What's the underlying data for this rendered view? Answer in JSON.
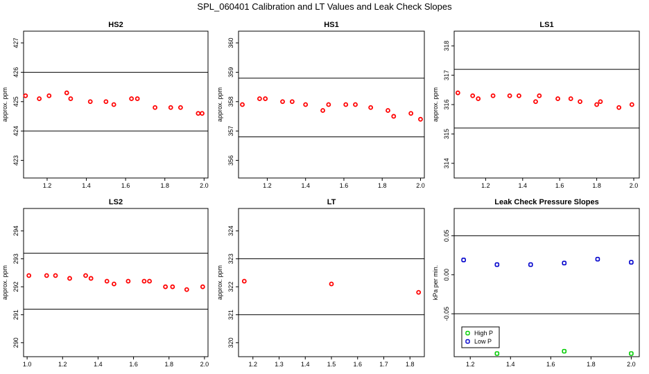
{
  "main_title": "SPL_060401  Calibration and LT Values and Leak Check Slopes",
  "chart_data": [
    {
      "type": "scatter",
      "title": "HS2",
      "ylabel": "approx. ppm",
      "xlim": [
        1.08,
        2.02
      ],
      "ylim": [
        422.4,
        427.4
      ],
      "xticks": [
        "1.2",
        "1.4",
        "1.6",
        "1.8",
        "2.0"
      ],
      "yticks": [
        "423",
        "424",
        "425",
        "426",
        "427"
      ],
      "hlines": [
        426,
        424
      ],
      "series": [
        {
          "color": "#ff0000",
          "marker": "circle",
          "x": [
            1.09,
            1.16,
            1.21,
            1.3,
            1.32,
            1.42,
            1.5,
            1.54,
            1.63,
            1.66,
            1.75,
            1.83,
            1.88,
            1.97,
            1.99
          ],
          "y": [
            425.2,
            425.1,
            425.2,
            425.3,
            425.1,
            425.0,
            425.0,
            424.9,
            425.1,
            425.1,
            424.8,
            424.8,
            424.8,
            424.6,
            424.6
          ]
        }
      ]
    },
    {
      "type": "scatter",
      "title": "HS1",
      "ylabel": "approx. ppm",
      "xlim": [
        1.05,
        2.02
      ],
      "ylim": [
        355.4,
        360.4
      ],
      "xticks": [
        "1.2",
        "1.4",
        "1.6",
        "1.8",
        "2.0"
      ],
      "yticks": [
        "356",
        "357",
        "358",
        "359",
        "360"
      ],
      "hlines": [
        358.8,
        356.8
      ],
      "series": [
        {
          "color": "#ff0000",
          "marker": "circle",
          "x": [
            1.07,
            1.16,
            1.19,
            1.28,
            1.33,
            1.4,
            1.49,
            1.52,
            1.61,
            1.66,
            1.74,
            1.83,
            1.86,
            1.95,
            2.0
          ],
          "y": [
            357.9,
            358.1,
            358.1,
            358.0,
            358.0,
            357.9,
            357.7,
            357.9,
            357.9,
            357.9,
            357.8,
            357.7,
            357.5,
            357.6,
            357.4
          ]
        }
      ]
    },
    {
      "type": "scatter",
      "title": "LS1",
      "ylabel": "approx. ppm",
      "xlim": [
        1.03,
        2.03
      ],
      "ylim": [
        313.5,
        318.5
      ],
      "xticks": [
        "1.2",
        "1.4",
        "1.6",
        "1.8",
        "2.0"
      ],
      "yticks": [
        "314",
        "315",
        "316",
        "317",
        "318"
      ],
      "hlines": [
        317.2,
        315.2
      ],
      "series": [
        {
          "color": "#ff0000",
          "marker": "circle",
          "x": [
            1.05,
            1.13,
            1.16,
            1.24,
            1.33,
            1.38,
            1.47,
            1.49,
            1.59,
            1.66,
            1.71,
            1.8,
            1.82,
            1.92,
            1.99
          ],
          "y": [
            316.4,
            316.3,
            316.2,
            316.3,
            316.3,
            316.3,
            316.1,
            316.3,
            316.2,
            316.2,
            316.1,
            316.0,
            316.1,
            315.9,
            316.0
          ]
        }
      ]
    },
    {
      "type": "scatter",
      "title": "LS2",
      "ylabel": "approx. ppm",
      "xlim": [
        0.98,
        2.02
      ],
      "ylim": [
        289.5,
        294.8
      ],
      "xticks": [
        "1.0",
        "1.2",
        "1.4",
        "1.6",
        "1.8",
        "2.0"
      ],
      "yticks": [
        "290",
        "291",
        "292",
        "293",
        "294"
      ],
      "hlines": [
        293.2,
        291.2
      ],
      "series": [
        {
          "color": "#ff0000",
          "marker": "circle",
          "x": [
            1.01,
            1.11,
            1.16,
            1.24,
            1.33,
            1.36,
            1.45,
            1.49,
            1.57,
            1.66,
            1.69,
            1.78,
            1.82,
            1.9,
            1.99
          ],
          "y": [
            292.4,
            292.4,
            292.4,
            292.3,
            292.4,
            292.3,
            292.2,
            292.1,
            292.2,
            292.2,
            292.2,
            292.0,
            292.0,
            291.9,
            292.0
          ]
        }
      ]
    },
    {
      "type": "scatter",
      "title": "LT",
      "ylabel": "approx. ppm",
      "xlim": [
        1.145,
        1.855
      ],
      "ylim": [
        319.5,
        324.8
      ],
      "xticks": [
        "1.2",
        "1.3",
        "1.4",
        "1.5",
        "1.6",
        "1.7",
        "1.8"
      ],
      "yticks": [
        "320",
        "321",
        "322",
        "323",
        "324"
      ],
      "hlines": [
        323.0,
        321.0
      ],
      "series": [
        {
          "color": "#ff0000",
          "marker": "circle",
          "x": [
            1.167,
            1.5,
            1.833
          ],
          "y": [
            322.2,
            322.1,
            321.8
          ]
        }
      ]
    },
    {
      "type": "scatter",
      "title": "Leak Check Pressure Slopes",
      "ylabel": "kPa per min.",
      "xlim": [
        1.12,
        2.04
      ],
      "ylim": [
        -0.105,
        0.085
      ],
      "xticks": [
        "1.2",
        "1.4",
        "1.6",
        "1.8",
        "2.0"
      ],
      "yticks": [
        "-0.05",
        "0.00",
        "0.05"
      ],
      "hlines": [
        0.05,
        -0.05
      ],
      "legend": "bottom-left",
      "series": [
        {
          "name": "High P",
          "color": "#00cc00",
          "marker": "square",
          "x": [
            1.333,
            1.667,
            2.0
          ],
          "y": [
            -0.101,
            -0.098,
            -0.101
          ]
        },
        {
          "name": "Low P",
          "color": "#0000cc",
          "marker": "square",
          "x": [
            1.167,
            1.333,
            1.5,
            1.667,
            1.833,
            2.0
          ],
          "y": [
            0.019,
            0.013,
            0.013,
            0.015,
            0.02,
            0.016
          ]
        }
      ]
    }
  ]
}
